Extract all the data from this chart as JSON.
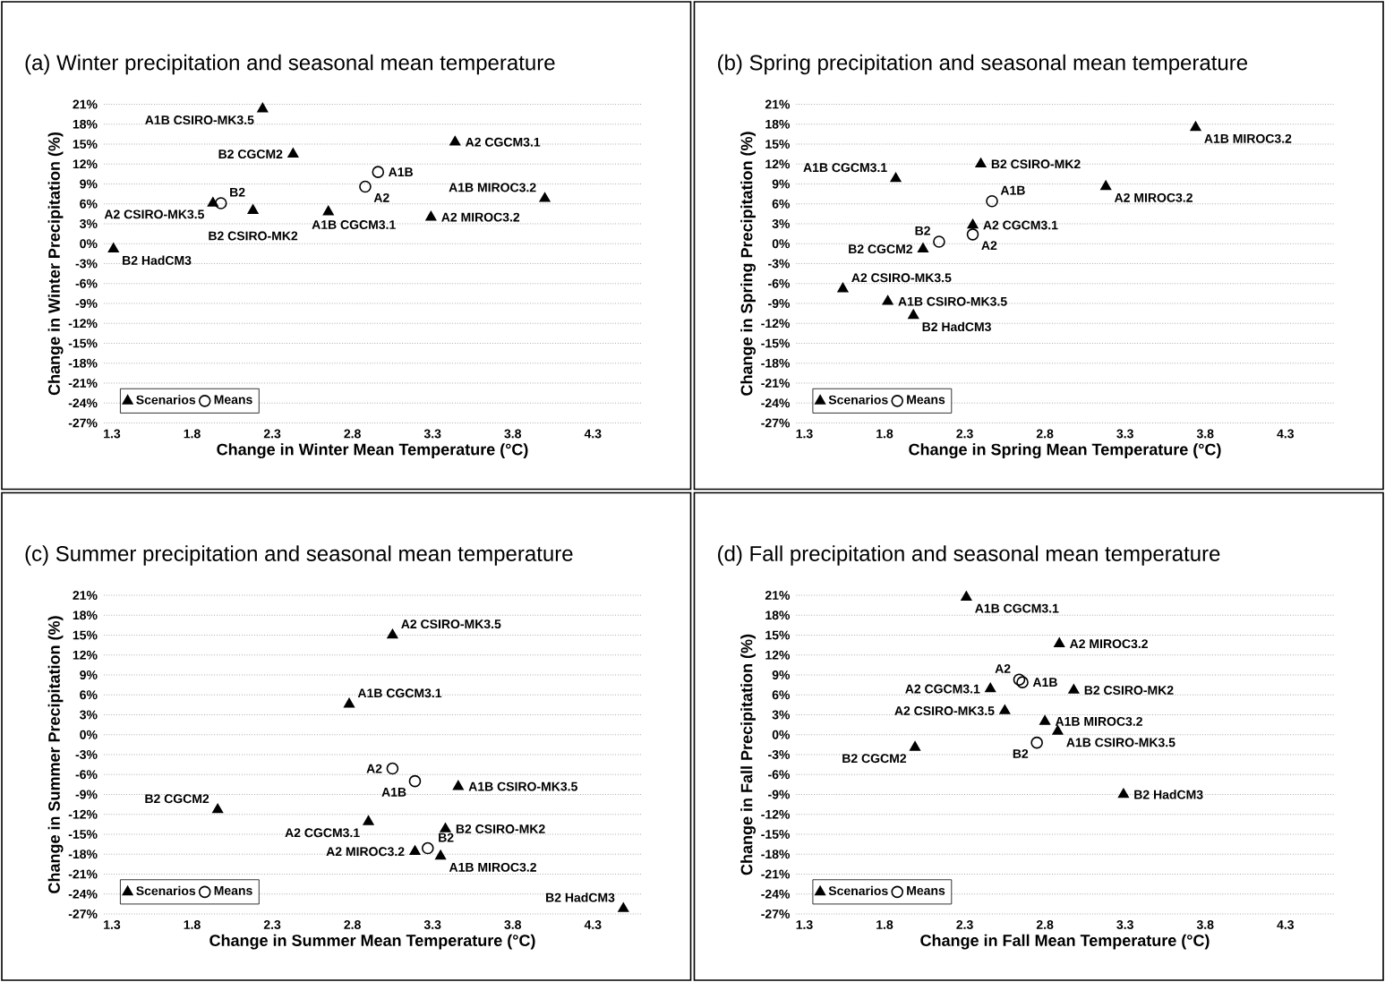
{
  "chart_data": [
    {
      "type": "scatter",
      "title": "(a) Winter precipitation and seasonal mean temperature",
      "xlabel": "Change in Winter Mean Temperature (°C)",
      "ylabel": "Change in Winter Precipitation (%)",
      "xlim": [
        1.25,
        4.6
      ],
      "ylim": [
        -27,
        21
      ],
      "xticks": [
        1.3,
        1.8,
        2.3,
        2.8,
        3.3,
        3.8,
        4.3
      ],
      "yticks": [
        {
          "value": 21,
          "label": "21%"
        },
        {
          "value": 18,
          "label": "18%"
        },
        {
          "value": 15,
          "label": "15%"
        },
        {
          "value": 12,
          "label": "12%"
        },
        {
          "value": 9,
          "label": "9%"
        },
        {
          "value": 6,
          "label": "6%"
        },
        {
          "value": 3,
          "label": "3%"
        },
        {
          "value": 0,
          "label": "0%"
        },
        {
          "value": -3,
          "label": "-3%"
        },
        {
          "value": -6,
          "label": "-6%"
        },
        {
          "value": -9,
          "label": "-9%"
        },
        {
          "value": -12,
          "label": "-12%"
        },
        {
          "value": -15,
          "label": "-15%"
        },
        {
          "value": -18,
          "label": "-18%"
        },
        {
          "value": -21,
          "label": "-21%"
        },
        {
          "value": -24,
          "label": "-24%"
        },
        {
          "value": -27,
          "label": "-27%"
        }
      ],
      "grid": "y",
      "legend": "bottom left",
      "series": [
        {
          "name": "Scenarios",
          "color": "#000000",
          "marker": "triangle",
          "x": [
            2.24,
            2.43,
            3.44,
            4.0,
            1.93,
            2.18,
            2.65,
            3.29,
            1.31
          ],
          "values": [
            20.3,
            13.5,
            15.3,
            6.8,
            6.1,
            5.0,
            4.8,
            4.0,
            -0.8
          ]
        },
        {
          "name": "Means",
          "color": "#000000",
          "marker": "circle",
          "x": [
            2.96,
            2.88,
            1.98
          ],
          "values": [
            10.8,
            8.6,
            6.1
          ]
        }
      ],
      "annotations": [
        {
          "text": "A1B CSIRO-MK3.5",
          "x": 2.24,
          "y": 20.3
        },
        {
          "text": "B2 CGCM2",
          "x": 2.43,
          "y": 13.5
        },
        {
          "text": "A2 CGCM3.1",
          "x": 3.44,
          "y": 15.3
        },
        {
          "text": "A1B",
          "x": 2.96,
          "y": 10.8
        },
        {
          "text": "A2",
          "x": 2.88,
          "y": 8.6
        },
        {
          "text": "A1B MIROC3.2",
          "x": 4.0,
          "y": 6.8
        },
        {
          "text": "A2 CSIRO-MK3.5",
          "x": 1.93,
          "y": 6.1
        },
        {
          "text": "B2",
          "x": 1.98,
          "y": 6.1
        },
        {
          "text": "B2 CSIRO-MK2",
          "x": 2.18,
          "y": 5.0
        },
        {
          "text": "A1B CGCM3.1",
          "x": 2.65,
          "y": 4.8
        },
        {
          "text": "A2 MIROC3.2",
          "x": 3.29,
          "y": 4.0
        },
        {
          "text": "B2 HadCM3",
          "x": 1.31,
          "y": -0.8
        }
      ]
    },
    {
      "type": "scatter",
      "title": "(b) Spring precipitation and seasonal mean temperature",
      "xlabel": "Change in Spring Mean Temperature (°C)",
      "ylabel": "Change in Spring Precipitation (%)",
      "xlim": [
        1.25,
        4.6
      ],
      "ylim": [
        -27,
        21
      ],
      "xticks": [
        1.3,
        1.8,
        2.3,
        2.8,
        3.3,
        3.8,
        4.3
      ],
      "yticks": [
        {
          "value": 21,
          "label": "21%"
        },
        {
          "value": 18,
          "label": "18%"
        },
        {
          "value": 15,
          "label": "15%"
        },
        {
          "value": 12,
          "label": "12%"
        },
        {
          "value": 9,
          "label": "9%"
        },
        {
          "value": 6,
          "label": "6%"
        },
        {
          "value": 3,
          "label": "3%"
        },
        {
          "value": 0,
          "label": "0%"
        },
        {
          "value": -3,
          "label": "-3%"
        },
        {
          "value": -6,
          "label": "-6%"
        },
        {
          "value": -9,
          "label": "-9%"
        },
        {
          "value": -12,
          "label": "-12%"
        },
        {
          "value": -15,
          "label": "-15%"
        },
        {
          "value": -18,
          "label": "-18%"
        },
        {
          "value": -21,
          "label": "-21%"
        },
        {
          "value": -24,
          "label": "-24%"
        },
        {
          "value": -27,
          "label": "-27%"
        }
      ],
      "grid": "y",
      "legend": "bottom left",
      "series": [
        {
          "name": "Scenarios",
          "color": "#000000",
          "marker": "triangle",
          "x": [
            3.74,
            1.87,
            2.4,
            3.18,
            2.35,
            2.04,
            1.54,
            1.82,
            1.98
          ],
          "values": [
            17.5,
            9.8,
            12.0,
            8.6,
            2.8,
            -0.8,
            -6.8,
            -8.7,
            -10.8
          ]
        },
        {
          "name": "Means",
          "color": "#000000",
          "marker": "circle",
          "x": [
            2.47,
            2.35,
            2.14
          ],
          "values": [
            6.4,
            1.4,
            0.3
          ]
        }
      ],
      "annotations": [
        {
          "text": "A1B MIROC3.2",
          "x": 3.74,
          "y": 17.5
        },
        {
          "text": "A1B CGCM3.1",
          "x": 1.87,
          "y": 9.8
        },
        {
          "text": "B2 CSIRO-MK2",
          "x": 2.4,
          "y": 12.0
        },
        {
          "text": "A2 MIROC3.2",
          "x": 3.18,
          "y": 8.6
        },
        {
          "text": "A1B",
          "x": 2.47,
          "y": 6.4
        },
        {
          "text": "A2 CGCM3.1",
          "x": 2.35,
          "y": 2.8
        },
        {
          "text": "A2",
          "x": 2.35,
          "y": 1.4
        },
        {
          "text": "B2",
          "x": 2.14,
          "y": 0.3
        },
        {
          "text": "B2 CGCM2",
          "x": 2.04,
          "y": -0.8
        },
        {
          "text": "A2 CSIRO-MK3.5",
          "x": 1.54,
          "y": -6.8
        },
        {
          "text": "A1B CSIRO-MK3.5",
          "x": 1.82,
          "y": -8.7
        },
        {
          "text": "B2 HadCM3",
          "x": 1.98,
          "y": -10.8
        }
      ]
    },
    {
      "type": "scatter",
      "title": "(c) Summer precipitation and seasonal mean temperature",
      "xlabel": "Change in Summer Mean Temperature (°C)",
      "ylabel": "Change in Summer Precipitation (%)",
      "xlim": [
        1.25,
        4.6
      ],
      "ylim": [
        -27,
        21
      ],
      "xticks": [
        1.3,
        1.8,
        2.3,
        2.8,
        3.3,
        3.8,
        4.3
      ],
      "yticks": [
        {
          "value": 21,
          "label": "21%"
        },
        {
          "value": 18,
          "label": "18%"
        },
        {
          "value": 15,
          "label": "15%"
        },
        {
          "value": 12,
          "label": "12%"
        },
        {
          "value": 9,
          "label": "9%"
        },
        {
          "value": 6,
          "label": "6%"
        },
        {
          "value": 3,
          "label": "3%"
        },
        {
          "value": 0,
          "label": "0%"
        },
        {
          "value": -3,
          "label": "-3%"
        },
        {
          "value": -6,
          "label": "-6%"
        },
        {
          "value": -9,
          "label": "-9%"
        },
        {
          "value": -12,
          "label": "-12%"
        },
        {
          "value": -15,
          "label": "-15%"
        },
        {
          "value": -18,
          "label": "-18%"
        },
        {
          "value": -21,
          "label": "-21%"
        },
        {
          "value": -24,
          "label": "-24%"
        },
        {
          "value": -27,
          "label": "-27%"
        }
      ],
      "grid": "y",
      "legend": "bottom left",
      "series": [
        {
          "name": "Scenarios",
          "color": "#000000",
          "marker": "triangle",
          "x": [
            3.05,
            2.78,
            3.46,
            1.96,
            2.9,
            3.38,
            3.19,
            3.35,
            4.49
          ],
          "values": [
            15.0,
            4.6,
            -7.8,
            -11.3,
            -13.1,
            -14.2,
            -17.6,
            -18.3,
            -26.2
          ]
        },
        {
          "name": "Means",
          "color": "#000000",
          "marker": "circle",
          "x": [
            3.05,
            3.19,
            3.27
          ],
          "values": [
            -5.1,
            -7.0,
            -17.1
          ]
        }
      ],
      "annotations": [
        {
          "text": "A2 CSIRO-MK3.5",
          "x": 3.05,
          "y": 15.0
        },
        {
          "text": "A1B CGCM3.1",
          "x": 2.78,
          "y": 4.6
        },
        {
          "text": "A2",
          "x": 3.05,
          "y": -5.1
        },
        {
          "text": "A1B",
          "x": 3.19,
          "y": -7.0
        },
        {
          "text": "A1B CSIRO-MK3.5",
          "x": 3.46,
          "y": -7.8
        },
        {
          "text": "B2 CGCM2",
          "x": 1.96,
          "y": -11.3
        },
        {
          "text": "A2 CGCM3.1",
          "x": 2.9,
          "y": -13.1
        },
        {
          "text": "B2 CSIRO-MK2",
          "x": 3.38,
          "y": -14.2
        },
        {
          "text": "B2",
          "x": 3.27,
          "y": -17.1
        },
        {
          "text": "A2 MIROC3.2",
          "x": 3.19,
          "y": -17.6
        },
        {
          "text": "A1B MIROC3.2",
          "x": 3.35,
          "y": -18.3
        },
        {
          "text": "B2 HadCM3",
          "x": 4.49,
          "y": -26.2
        }
      ]
    },
    {
      "type": "scatter",
      "title": "(d) Fall precipitation and seasonal mean temperature",
      "xlabel": "Change in Fall Mean Temperature (°C)",
      "ylabel": "Change in Fall Precipitation (%)",
      "xlim": [
        1.25,
        4.6
      ],
      "ylim": [
        -27,
        21
      ],
      "xticks": [
        1.3,
        1.8,
        2.3,
        2.8,
        3.3,
        3.8,
        4.3
      ],
      "yticks": [
        {
          "value": 21,
          "label": "21%"
        },
        {
          "value": 18,
          "label": "18%"
        },
        {
          "value": 15,
          "label": "15%"
        },
        {
          "value": 12,
          "label": "12%"
        },
        {
          "value": 9,
          "label": "9%"
        },
        {
          "value": 6,
          "label": "6%"
        },
        {
          "value": 3,
          "label": "3%"
        },
        {
          "value": 0,
          "label": "0%"
        },
        {
          "value": -3,
          "label": "-3%"
        },
        {
          "value": -6,
          "label": "-6%"
        },
        {
          "value": -9,
          "label": "-9%"
        },
        {
          "value": -12,
          "label": "-12%"
        },
        {
          "value": -15,
          "label": "-15%"
        },
        {
          "value": -18,
          "label": "-18%"
        },
        {
          "value": -21,
          "label": "-21%"
        },
        {
          "value": -24,
          "label": "-24%"
        },
        {
          "value": -27,
          "label": "-27%"
        }
      ],
      "grid": "y",
      "legend": "bottom left",
      "series": [
        {
          "name": "Scenarios",
          "color": "#000000",
          "marker": "triangle",
          "x": [
            2.31,
            2.89,
            2.46,
            2.98,
            2.55,
            2.8,
            2.88,
            1.99,
            3.29
          ],
          "values": [
            20.7,
            13.7,
            6.9,
            6.7,
            3.6,
            2.0,
            0.5,
            -1.9,
            -9.0
          ]
        },
        {
          "name": "Means",
          "color": "#000000",
          "marker": "circle",
          "x": [
            2.64,
            2.66,
            2.75
          ],
          "values": [
            8.3,
            7.9,
            -1.2
          ]
        }
      ],
      "annotations": [
        {
          "text": "A1B CGCM3.1",
          "x": 2.31,
          "y": 20.7
        },
        {
          "text": "A2 MIROC3.2",
          "x": 2.89,
          "y": 13.7
        },
        {
          "text": "A2",
          "x": 2.64,
          "y": 8.3
        },
        {
          "text": "A1B",
          "x": 2.66,
          "y": 7.9
        },
        {
          "text": "A2 CGCM3.1",
          "x": 2.46,
          "y": 6.9
        },
        {
          "text": "B2 CSIRO-MK2",
          "x": 2.98,
          "y": 6.7
        },
        {
          "text": "A2 CSIRO-MK3.5",
          "x": 2.55,
          "y": 3.6
        },
        {
          "text": "A1B MIROC3.2",
          "x": 2.8,
          "y": 2.0
        },
        {
          "text": "A1B CSIRO-MK3.5",
          "x": 2.88,
          "y": 0.5
        },
        {
          "text": "B2",
          "x": 2.75,
          "y": -1.2
        },
        {
          "text": "B2 CGCM2",
          "x": 1.99,
          "y": -1.9
        },
        {
          "text": "B2 HadCM3",
          "x": 3.29,
          "y": -9.0
        }
      ]
    }
  ]
}
